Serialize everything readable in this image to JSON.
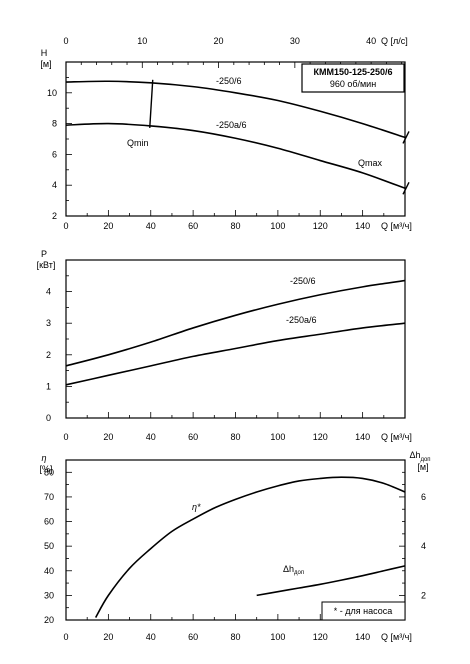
{
  "chart_data": [
    {
      "type": "line",
      "id": "head",
      "title_box": {
        "model": "КММ150-125-250/6",
        "speed": "960 об/мин"
      },
      "xlabel": "Q [м³/ч]",
      "x2label": "Q [л/с]",
      "ylabel": "H",
      "yunit": "[м]",
      "xlim": [
        0,
        160
      ],
      "x2lim": [
        0,
        44.44
      ],
      "ylim": [
        2,
        12
      ],
      "x_ticks": [
        0,
        20,
        40,
        60,
        80,
        100,
        120,
        140
      ],
      "x2_ticks": [
        0,
        10,
        20,
        30,
        40
      ],
      "y_ticks": [
        2,
        4,
        6,
        8,
        10
      ],
      "annotations": [
        "Qmin",
        "Qmax"
      ],
      "qmin_x": 40,
      "qmax_x": 160,
      "series": [
        {
          "name": "-250/6",
          "x": [
            0,
            20,
            40,
            60,
            80,
            100,
            120,
            140,
            160
          ],
          "y": [
            10.7,
            10.75,
            10.65,
            10.4,
            10.0,
            9.5,
            8.8,
            8.0,
            7.1
          ]
        },
        {
          "name": "-250а/6",
          "x": [
            0,
            20,
            40,
            60,
            80,
            100,
            120,
            140,
            160
          ],
          "y": [
            7.9,
            8.0,
            7.85,
            7.55,
            7.05,
            6.4,
            5.6,
            4.8,
            3.8
          ]
        }
      ]
    },
    {
      "type": "line",
      "id": "power",
      "xlabel": "Q [м³/ч]",
      "ylabel": "P",
      "yunit": "[кВт]",
      "xlim": [
        0,
        160
      ],
      "ylim": [
        0,
        5
      ],
      "x_ticks": [
        0,
        20,
        40,
        60,
        80,
        100,
        120,
        140
      ],
      "y_ticks": [
        0,
        1,
        2,
        3,
        4
      ],
      "series": [
        {
          "name": "-250/6",
          "x": [
            0,
            20,
            40,
            60,
            80,
            100,
            120,
            140,
            160
          ],
          "y": [
            1.65,
            2.0,
            2.4,
            2.85,
            3.25,
            3.6,
            3.9,
            4.15,
            4.35
          ]
        },
        {
          "name": "-250а/6",
          "x": [
            0,
            20,
            40,
            60,
            80,
            100,
            120,
            140,
            160
          ],
          "y": [
            1.05,
            1.35,
            1.65,
            1.95,
            2.2,
            2.45,
            2.65,
            2.85,
            3.0
          ]
        }
      ]
    },
    {
      "type": "line",
      "id": "efficiency",
      "xlabel": "Q [м³/ч]",
      "ylabel": "η",
      "yunit": "[%]",
      "y2label": "Δh",
      "y2label_sub": "доп",
      "y2unit": "[м]",
      "xlim": [
        0,
        160
      ],
      "ylim": [
        20,
        85
      ],
      "y2lim": [
        1,
        7.5
      ],
      "x_ticks": [
        0,
        20,
        40,
        60,
        80,
        100,
        120,
        140
      ],
      "y_ticks": [
        20,
        30,
        40,
        50,
        60,
        70,
        80
      ],
      "y2_ticks": [
        2,
        4,
        6
      ],
      "note": "* - для насоса",
      "series": [
        {
          "name": "η*",
          "axis": "left",
          "x": [
            14,
            20,
            30,
            40,
            50,
            60,
            70,
            80,
            90,
            100,
            110,
            120,
            130,
            140,
            150,
            160
          ],
          "y": [
            21,
            30,
            41,
            49,
            56,
            61,
            65.5,
            69,
            72,
            74.5,
            76.5,
            77.5,
            78,
            77.5,
            75.5,
            72
          ]
        },
        {
          "name": "Δhдоп",
          "axis": "right",
          "name_sub": "доп",
          "x": [
            90,
            100,
            110,
            120,
            130,
            140,
            150,
            160
          ],
          "y": [
            2.0,
            2.15,
            2.3,
            2.45,
            2.62,
            2.8,
            3.0,
            3.2
          ]
        }
      ]
    }
  ]
}
